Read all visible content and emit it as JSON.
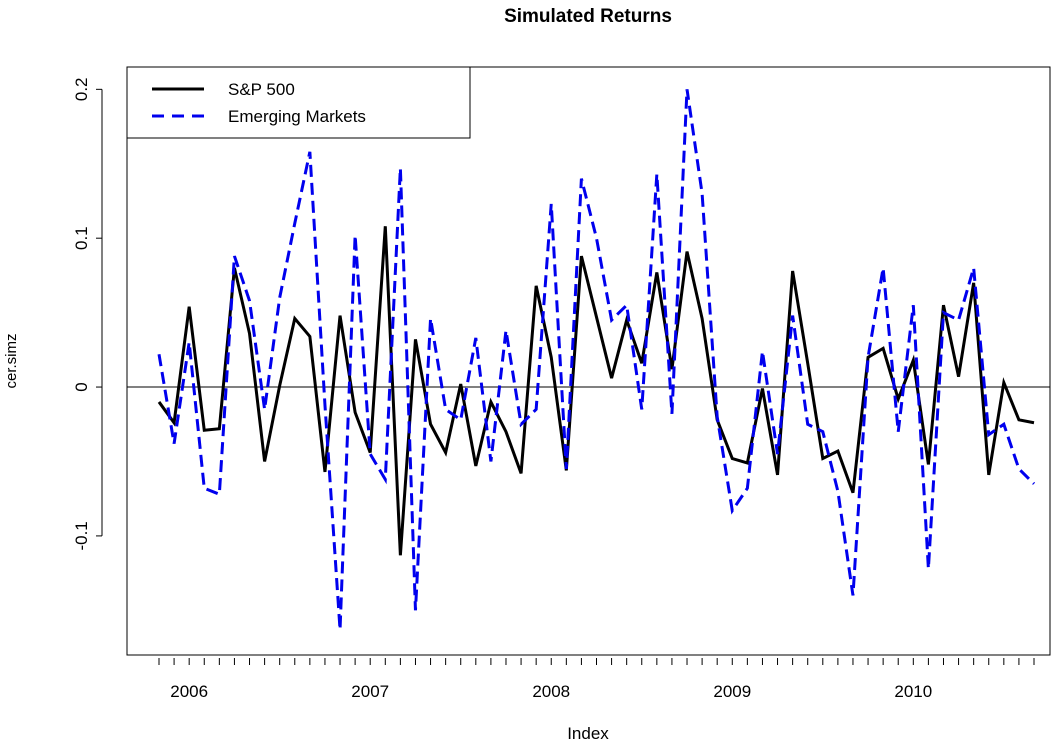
{
  "chart_data": {
    "type": "line",
    "title": "Simulated Returns",
    "x_label": "Index",
    "y_label": "cer.simz",
    "categories": [
      null,
      null,
      "2006",
      null,
      null,
      null,
      null,
      null,
      null,
      null,
      null,
      null,
      null,
      null,
      "2007",
      null,
      null,
      null,
      null,
      null,
      null,
      null,
      null,
      null,
      null,
      null,
      "2008",
      null,
      null,
      null,
      null,
      null,
      null,
      null,
      null,
      null,
      null,
      null,
      "2009",
      null,
      null,
      null,
      null,
      null,
      null,
      null,
      null,
      null,
      null,
      null,
      "2010",
      null,
      null,
      null,
      null,
      null,
      null,
      null,
      null
    ],
    "series": [
      {
        "name": "S&P 500",
        "color": "#000000",
        "dash": "solid",
        "values": [
          -0.01,
          -0.024,
          0.054,
          -0.029,
          -0.028,
          0.08,
          0.036,
          -0.05,
          0.001,
          0.046,
          0.034,
          -0.057,
          0.048,
          -0.017,
          -0.044,
          0.108,
          -0.113,
          0.032,
          -0.025,
          -0.044,
          0.002,
          -0.053,
          -0.01,
          -0.03,
          -0.058,
          0.068,
          0.02,
          -0.056,
          0.088,
          0.047,
          0.006,
          0.045,
          0.016,
          0.077,
          0.012,
          0.091,
          0.046,
          -0.022,
          -0.048,
          -0.051,
          -0.001,
          -0.059,
          0.078,
          0.016,
          -0.048,
          -0.043,
          -0.071,
          0.02,
          0.026,
          -0.008,
          0.018,
          -0.052,
          0.055,
          0.007,
          0.07,
          -0.059,
          0.003,
          -0.022,
          -0.024
        ]
      },
      {
        "name": "Emerging Markets",
        "color": "#0000ee",
        "dash": "dashed",
        "values": [
          0.022,
          -0.038,
          0.03,
          -0.068,
          -0.072,
          0.088,
          0.058,
          -0.015,
          0.06,
          0.11,
          0.158,
          -0.012,
          -0.163,
          0.102,
          -0.045,
          -0.062,
          0.147,
          -0.15,
          0.046,
          -0.015,
          -0.022,
          0.033,
          -0.05,
          0.038,
          -0.025,
          -0.015,
          0.123,
          -0.055,
          0.14,
          0.1,
          0.045,
          0.055,
          -0.015,
          0.143,
          -0.018,
          0.2,
          0.13,
          -0.02,
          -0.083,
          -0.068,
          0.024,
          -0.045,
          0.048,
          -0.025,
          -0.03,
          -0.07,
          -0.14,
          0.02,
          0.08,
          -0.03,
          0.055,
          -0.122,
          0.05,
          0.045,
          0.08,
          -0.032,
          -0.025,
          -0.055,
          -0.065
        ]
      }
    ],
    "ylim": [
      -0.18,
      0.215
    ],
    "yticks": [
      -0.1,
      0.0,
      0.1,
      0.2
    ],
    "reference_line": 0,
    "legend": "top-left",
    "grid": false
  }
}
